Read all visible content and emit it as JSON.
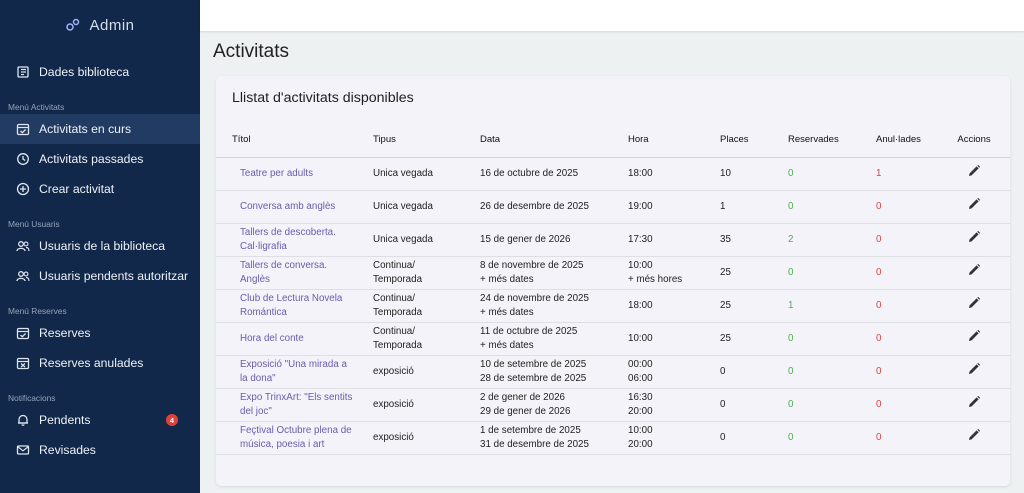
{
  "brand": {
    "title": "Admin"
  },
  "sidebar": {
    "top": [
      {
        "label": "Dades biblioteca",
        "icon": "library-icon"
      }
    ],
    "sections": [
      {
        "title": "Menú Activitats",
        "items": [
          {
            "label": "Activitats en curs",
            "icon": "calendar-check-icon",
            "active": true
          },
          {
            "label": "Activitats passades",
            "icon": "history-icon"
          },
          {
            "label": "Crear activitat",
            "icon": "plus-circle-icon"
          }
        ]
      },
      {
        "title": "Menú Usuaris",
        "items": [
          {
            "label": "Usuaris de la biblioteca",
            "icon": "users-icon"
          },
          {
            "label": "Usuaris pendents autoritzar",
            "icon": "users-icon"
          }
        ]
      },
      {
        "title": "Menú Reserves",
        "items": [
          {
            "label": "Reserves",
            "icon": "calendar-check-icon"
          },
          {
            "label": "Reserves anulades",
            "icon": "calendar-x-icon"
          }
        ]
      },
      {
        "title": "Notificacions",
        "items": [
          {
            "label": "Pendents",
            "icon": "bell-icon",
            "badge": "4"
          },
          {
            "label": "Revisades",
            "icon": "mail-icon"
          }
        ]
      }
    ]
  },
  "page": {
    "title": "Activitats"
  },
  "card": {
    "title": "Llistat d'activitats disponibles"
  },
  "table": {
    "headers": [
      "Títol",
      "Tipus",
      "Data",
      "Hora",
      "Places",
      "Reservades",
      "Anul·lades",
      "Accions"
    ],
    "rows": [
      {
        "title": "Teatre per adults",
        "type": "Unica vegada",
        "date": "16 de octubre de 2025",
        "time": "18:00",
        "places": "10",
        "reserved": "0",
        "cancelled": "1"
      },
      {
        "title": "Conversa amb anglès",
        "type": "Unica vegada",
        "date": "26 de desembre de 2025",
        "time": "19:00",
        "places": "1",
        "reserved": "0",
        "cancelled": "0"
      },
      {
        "title": "Tallers de descoberta. Cal·ligrafia",
        "type": "Unica vegada",
        "date": "15 de gener de 2026",
        "time": "17:30",
        "places": "35",
        "reserved": "2",
        "cancelled": "0"
      },
      {
        "title": "Tallers de conversa. Anglès",
        "type": "Continua/ Temporada",
        "date": "8 de novembre de 2025\n+ més dates",
        "time": "10:00\n+ més hores",
        "places": "25",
        "reserved": "0",
        "cancelled": "0"
      },
      {
        "title": "Club de Lectura Novela Romántica",
        "type": "Continua/ Temporada",
        "date": "24 de novembre de 2025\n+ més dates",
        "time": "18:00",
        "places": "25",
        "reserved": "1",
        "cancelled": "0"
      },
      {
        "title": "Hora del conte",
        "type": "Continua/ Temporada",
        "date": "11 de octubre de 2025\n+ més dates",
        "time": "10:00",
        "places": "25",
        "reserved": "0",
        "cancelled": "0"
      },
      {
        "title": "Exposició \"Una mirada a la dona\"",
        "type": "exposició",
        "date": "10 de setembre de 2025\n28 de setembre de 2025",
        "time": "00:00\n06:00",
        "places": "0",
        "reserved": "0",
        "cancelled": "0"
      },
      {
        "title": "Expo TrinxArt: \"Els sentits del joc\"",
        "type": "exposició",
        "date": "2 de gener de 2026\n29 de gener de 2026",
        "time": "16:30\n20:00",
        "places": "0",
        "reserved": "0",
        "cancelled": "0"
      },
      {
        "title": "Feçtival Octubre plena de música, poesia i art",
        "type": "exposició",
        "date": "1 de setembre de 2025\n31 de desembre de 2025",
        "time": "10:00\n20:00",
        "places": "0",
        "reserved": "0",
        "cancelled": "0"
      }
    ]
  },
  "colors": {
    "sidebar": "#12284a",
    "active": "#223b63",
    "link": "#6a5cae",
    "green": "#4caf50",
    "red": "#e0443c"
  }
}
